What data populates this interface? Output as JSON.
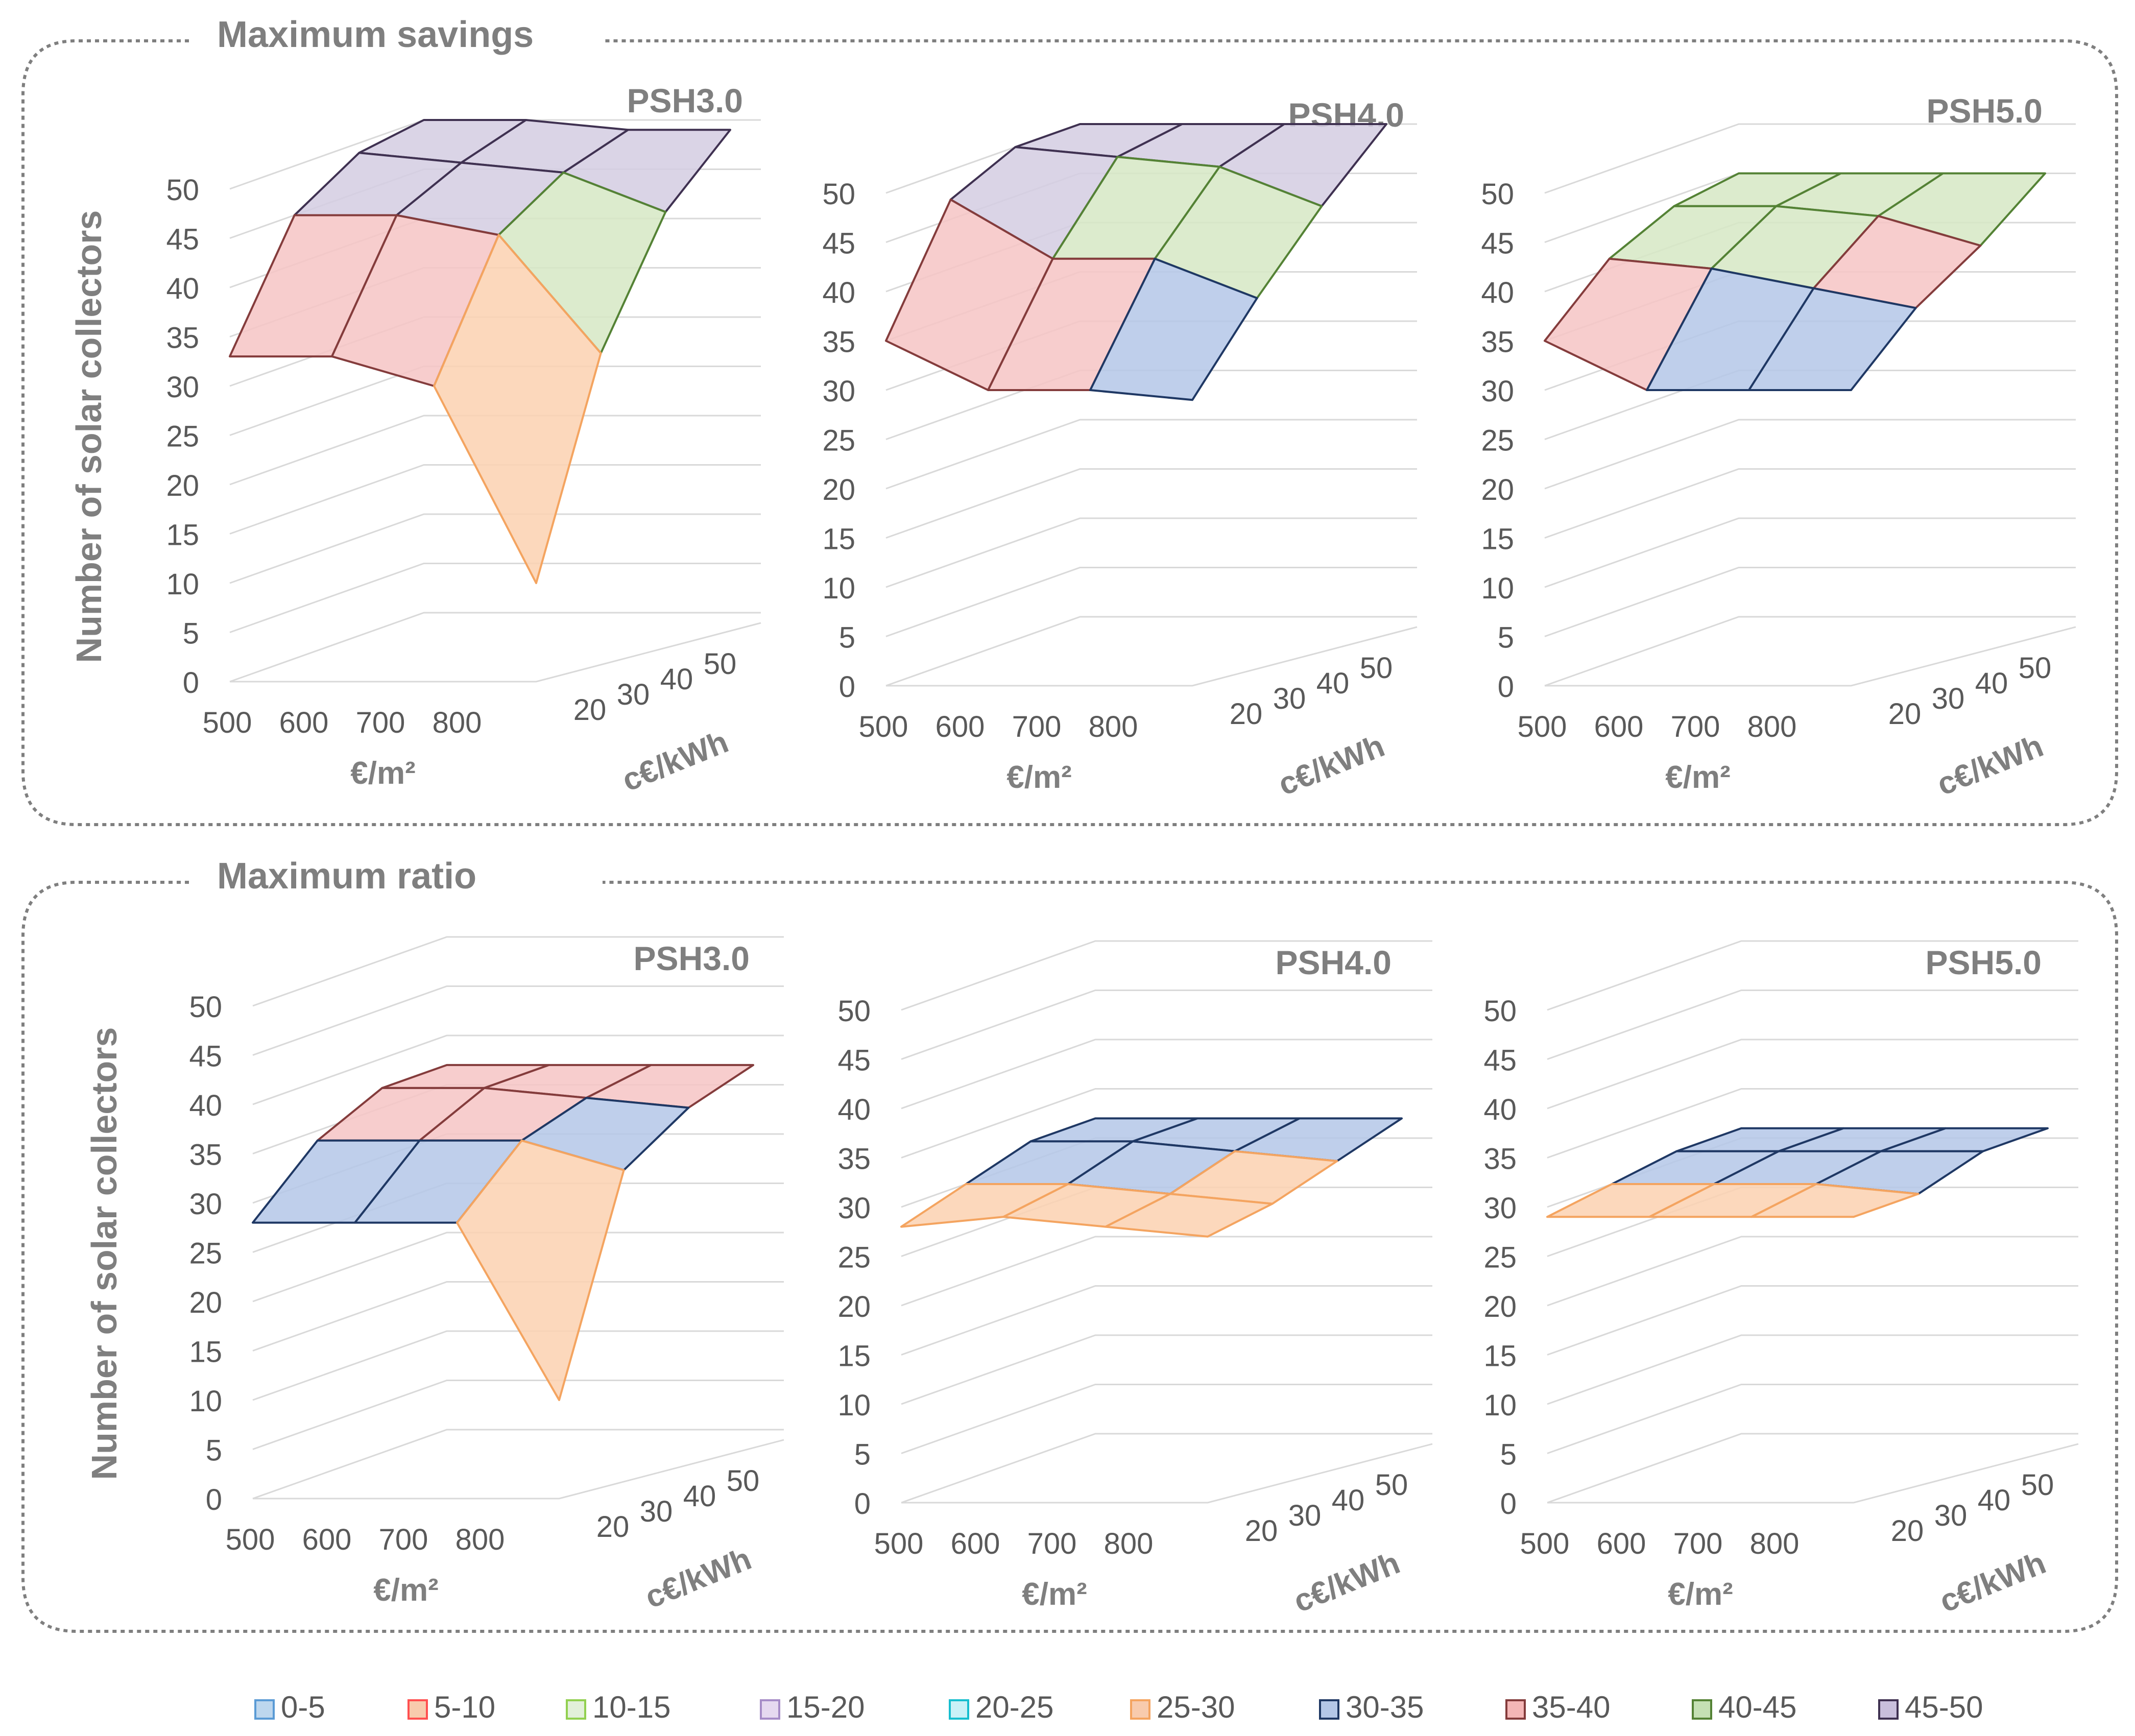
{
  "figure": {
    "group_titles": [
      "Maximum savings",
      "Maximum ratio"
    ],
    "y_axis_title": "Number of solar collectors",
    "x_axis_title": "€/m²",
    "z_axis_title": "c€/kWh"
  },
  "legend": [
    {
      "label": "0-5",
      "color": "#bdd7ee",
      "border": "#5b9bd5"
    },
    {
      "label": "5-10",
      "color": "#f8cbad",
      "border": "#ff5050"
    },
    {
      "label": "10-15",
      "color": "#e2f0d9",
      "border": "#92d050"
    },
    {
      "label": "15-20",
      "color": "#e6d9f0",
      "border": "#a68cc7"
    },
    {
      "label": "20-25",
      "color": "#c9f1f7",
      "border": "#17becf"
    },
    {
      "label": "25-30",
      "color": "#f8cbad",
      "border": "#f4a460"
    },
    {
      "label": "30-35",
      "color": "#b4c7e7",
      "border": "#1f3864"
    },
    {
      "label": "35-40",
      "color": "#f4b6b6",
      "border": "#843c3c"
    },
    {
      "label": "40-45",
      "color": "#c5e0b4",
      "border": "#548235"
    },
    {
      "label": "45-50",
      "color": "#c9bfdc",
      "border": "#3f3151"
    }
  ],
  "chart_data": [
    {
      "type": "surface",
      "group": "Maximum savings",
      "title": "PSH3.0",
      "ylabel": "Number of solar collectors",
      "xlabel": "€/m²",
      "zlabel": "c€/kWh",
      "x_categories": [
        "500",
        "600",
        "700",
        "800"
      ],
      "z_categories": [
        "20",
        "30",
        "40",
        "50"
      ],
      "yticks": [
        "0",
        "5",
        "10",
        "15",
        "20",
        "25",
        "30",
        "35",
        "40",
        "45",
        "50"
      ],
      "ylim": [
        0,
        50
      ],
      "values": [
        [
          33,
          45,
          49,
          50
        ],
        [
          33,
          45,
          48,
          50
        ],
        [
          30,
          43,
          47,
          49
        ],
        [
          10,
          31,
          43,
          49
        ]
      ]
    },
    {
      "type": "surface",
      "group": "Maximum savings",
      "title": "PSH4.0",
      "ylabel": "Number of solar collectors",
      "xlabel": "€/m²",
      "zlabel": "c€/kWh",
      "x_categories": [
        "500",
        "600",
        "700",
        "800"
      ],
      "z_categories": [
        "20",
        "30",
        "40",
        "50"
      ],
      "yticks": [
        "0",
        "5",
        "10",
        "15",
        "20",
        "25",
        "30",
        "35",
        "40",
        "45",
        "50"
      ],
      "ylim": [
        0,
        50
      ],
      "values": [
        [
          35,
          47,
          50,
          50
        ],
        [
          30,
          41,
          49,
          50
        ],
        [
          30,
          41,
          48,
          50
        ],
        [
          29,
          37,
          44,
          50
        ]
      ]
    },
    {
      "type": "surface",
      "group": "Maximum savings",
      "title": "PSH5.0",
      "ylabel": "Number of solar collectors",
      "xlabel": "€/m²",
      "zlabel": "c€/kWh",
      "x_categories": [
        "500",
        "600",
        "700",
        "800"
      ],
      "z_categories": [
        "20",
        "30",
        "40",
        "50"
      ],
      "yticks": [
        "0",
        "5",
        "10",
        "15",
        "20",
        "25",
        "30",
        "35",
        "40",
        "45",
        "50"
      ],
      "ylim": [
        0,
        50
      ],
      "values": [
        [
          35,
          41,
          44,
          45
        ],
        [
          30,
          40,
          44,
          45
        ],
        [
          30,
          38,
          43,
          45
        ],
        [
          30,
          36,
          40,
          45
        ]
      ]
    },
    {
      "type": "surface",
      "group": "Maximum ratio",
      "title": "PSH3.0",
      "ylabel": "Number of solar collectors",
      "xlabel": "€/m²",
      "zlabel": "c€/kWh",
      "x_categories": [
        "500",
        "600",
        "700",
        "800"
      ],
      "z_categories": [
        "20",
        "30",
        "40",
        "50"
      ],
      "yticks": [
        "0",
        "5",
        "10",
        "15",
        "20",
        "25",
        "30",
        "35",
        "40",
        "45",
        "50"
      ],
      "ylim": [
        0,
        50
      ],
      "values": [
        [
          28,
          34,
          37,
          37
        ],
        [
          28,
          34,
          37,
          37
        ],
        [
          28,
          34,
          36,
          37
        ],
        [
          10,
          31,
          35,
          37
        ]
      ]
    },
    {
      "type": "surface",
      "group": "Maximum ratio",
      "title": "PSH4.0",
      "ylabel": "Number of solar collectors",
      "xlabel": "€/m²",
      "zlabel": "c€/kWh",
      "x_categories": [
        "500",
        "600",
        "700",
        "800"
      ],
      "z_categories": [
        "20",
        "30",
        "40",
        "50"
      ],
      "yticks": [
        "0",
        "5",
        "10",
        "15",
        "20",
        "25",
        "30",
        "35",
        "40",
        "45",
        "50"
      ],
      "ylim": [
        0,
        50
      ],
      "values": [
        [
          28,
          30,
          32,
          32
        ],
        [
          29,
          30,
          32,
          32
        ],
        [
          28,
          29,
          31,
          32
        ],
        [
          27,
          28,
          30,
          32
        ]
      ]
    },
    {
      "type": "surface",
      "group": "Maximum ratio",
      "title": "PSH5.0",
      "ylabel": "Number of solar collectors",
      "xlabel": "€/m²",
      "zlabel": "c€/kWh",
      "x_categories": [
        "500",
        "600",
        "700",
        "800"
      ],
      "z_categories": [
        "20",
        "30",
        "40",
        "50"
      ],
      "yticks": [
        "0",
        "5",
        "10",
        "15",
        "20",
        "25",
        "30",
        "35",
        "40",
        "45",
        "50"
      ],
      "ylim": [
        0,
        50
      ],
      "values": [
        [
          29,
          30,
          31,
          31
        ],
        [
          29,
          30,
          31,
          31
        ],
        [
          29,
          30,
          31,
          31
        ],
        [
          29,
          29,
          31,
          31
        ]
      ]
    }
  ]
}
